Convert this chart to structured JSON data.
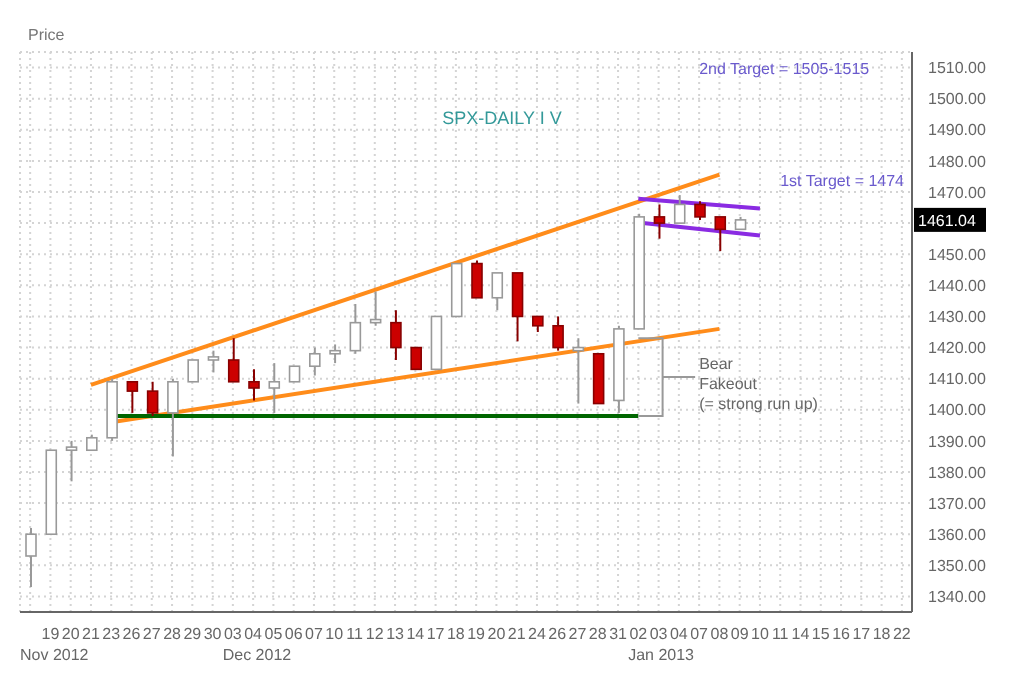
{
  "chart_data": {
    "type": "candlestick",
    "title": "SPX-DAILY I V",
    "ylabel": "Price",
    "categories": [
      null,
      "19",
      "20",
      "21",
      "23",
      "26",
      "27",
      "28",
      "29",
      "30",
      "03",
      "04",
      "05",
      "06",
      "07",
      "10",
      "11",
      "12",
      "13",
      "14",
      "17",
      "18",
      "19",
      "20",
      "21",
      "24",
      "26",
      "27",
      "28",
      "31",
      "02",
      "03",
      "04",
      "07",
      "08",
      "09",
      "10",
      "11",
      "14",
      "15",
      "16",
      "17",
      "18",
      "22"
    ],
    "ohlc": [
      [
        1353,
        1362,
        1343,
        1360
      ],
      [
        1360,
        1387,
        1360,
        1387
      ],
      [
        1387,
        1390,
        1377,
        1388
      ],
      [
        1387,
        1392,
        1387,
        1391
      ],
      [
        1391,
        1410,
        1390,
        1409
      ],
      [
        1409,
        1409,
        1399,
        1406
      ],
      [
        1406,
        1409,
        1398,
        1399
      ],
      [
        1399,
        1410,
        1385,
        1409
      ],
      [
        1409,
        1416,
        1409,
        1416
      ],
      [
        1416,
        1419,
        1412,
        1417
      ],
      [
        1416,
        1423,
        1409,
        1409
      ],
      [
        1409,
        1413,
        1403,
        1407
      ],
      [
        1407,
        1415,
        1399,
        1409
      ],
      [
        1409,
        1414,
        1409,
        1414
      ],
      [
        1414,
        1420,
        1411,
        1418
      ],
      [
        1418,
        1421,
        1415,
        1419
      ],
      [
        1419,
        1434,
        1418,
        1428
      ],
      [
        1428,
        1438,
        1427,
        1429
      ],
      [
        1428,
        1432,
        1416,
        1420
      ],
      [
        1420,
        1420,
        1413,
        1413
      ],
      [
        1413,
        1430,
        1413,
        1430
      ],
      [
        1430,
        1447,
        1430,
        1447
      ],
      [
        1447,
        1448,
        1436,
        1436
      ],
      [
        1436,
        1444,
        1432,
        1444
      ],
      [
        1444,
        1444,
        1422,
        1430
      ],
      [
        1430,
        1430,
        1425,
        1427
      ],
      [
        1427,
        1430,
        1419,
        1420
      ],
      [
        1419,
        1423,
        1402,
        1420
      ],
      [
        1418,
        1418,
        1402,
        1402
      ],
      [
        1403,
        1427,
        1399,
        1426
      ],
      [
        1426,
        1463,
        1426,
        1462
      ],
      [
        1462,
        1466,
        1455,
        1460
      ],
      [
        1460,
        1469,
        1460,
        1466
      ],
      [
        1466,
        1467,
        1461,
        1462
      ],
      [
        1462,
        1462,
        1451,
        1458
      ],
      [
        1458,
        1462,
        1458,
        1461.04
      ],
      null,
      null,
      null,
      null,
      null,
      null,
      null,
      null
    ],
    "series": [
      {
        "type": "line",
        "color": "#ff8c1a",
        "values": [
          null,
          null,
          null,
          1408,
          null,
          null,
          null,
          null,
          null,
          null,
          null,
          null,
          null,
          null,
          null,
          null,
          null,
          null,
          null,
          null,
          null,
          null,
          null,
          null,
          null,
          null,
          null,
          null,
          null,
          null,
          null,
          null,
          null,
          null,
          1475.6,
          null,
          null,
          null,
          null,
          null,
          null,
          null,
          null,
          null
        ]
      },
      {
        "type": "line",
        "color": "#ff8c1a",
        "values": [
          null,
          null,
          null,
          null,
          1396,
          null,
          null,
          null,
          null,
          null,
          null,
          null,
          null,
          null,
          null,
          null,
          null,
          null,
          null,
          null,
          null,
          null,
          null,
          null,
          null,
          null,
          null,
          null,
          null,
          null,
          null,
          null,
          null,
          null,
          1426,
          null,
          null,
          null,
          null,
          null,
          null,
          null,
          null,
          null
        ]
      },
      {
        "type": "line",
        "color": "#006600",
        "values": [
          null,
          null,
          null,
          null,
          1398,
          null,
          null,
          null,
          null,
          null,
          null,
          null,
          null,
          null,
          null,
          null,
          null,
          null,
          null,
          null,
          null,
          null,
          null,
          null,
          null,
          null,
          null,
          null,
          null,
          null,
          1398,
          null,
          null,
          null,
          null,
          null,
          null,
          null,
          null,
          null,
          null,
          null,
          null,
          null
        ]
      },
      {
        "type": "line",
        "color": "#8a2be2",
        "values": [
          null,
          null,
          null,
          null,
          null,
          null,
          null,
          null,
          null,
          null,
          null,
          null,
          null,
          null,
          null,
          null,
          null,
          null,
          null,
          null,
          null,
          null,
          null,
          null,
          null,
          null,
          null,
          null,
          null,
          null,
          1467.8,
          null,
          null,
          null,
          null,
          null,
          1464.7,
          null,
          null,
          null,
          null,
          null,
          null,
          null
        ]
      },
      {
        "type": "line",
        "color": "#8a2be2",
        "values": [
          null,
          null,
          null,
          null,
          null,
          null,
          null,
          null,
          null,
          null,
          null,
          null,
          null,
          null,
          null,
          null,
          null,
          null,
          null,
          null,
          null,
          null,
          null,
          null,
          null,
          null,
          null,
          null,
          null,
          null,
          1460.2,
          null,
          null,
          null,
          null,
          null,
          1456,
          null,
          null,
          null,
          null,
          null,
          null,
          null
        ]
      }
    ],
    "ylim": [
      1335,
      1515
    ],
    "yticks": [
      {
        "value": 1340,
        "label": "1340.00"
      },
      {
        "value": 1350,
        "label": "1350.00"
      },
      {
        "value": 1360,
        "label": "1360.00"
      },
      {
        "value": 1370,
        "label": "1370.00"
      },
      {
        "value": 1380,
        "label": "1380.00"
      },
      {
        "value": 1390,
        "label": "1390.00"
      },
      {
        "value": 1400,
        "label": "1400.00"
      },
      {
        "value": 1410,
        "label": "1410.00"
      },
      {
        "value": 1420,
        "label": "1420.00"
      },
      {
        "value": 1430,
        "label": "1430.00"
      },
      {
        "value": 1440,
        "label": "1440.00"
      },
      {
        "value": 1450,
        "label": "1450.00"
      },
      {
        "value": 1460,
        "label": null
      },
      {
        "value": 1470,
        "label": "1470.00"
      },
      {
        "value": 1480,
        "label": "1480.00"
      },
      {
        "value": 1490,
        "label": "1490.00"
      },
      {
        "value": 1500,
        "label": "1500.00"
      },
      {
        "value": 1510,
        "label": "1510.00"
      }
    ],
    "grid": true,
    "annotations": [
      "Nov 2012",
      "Dec 2012",
      "Jan 2013",
      "2nd Target = 1505-1515",
      "1st Target = 1474",
      "Bear\nFakeout\n(= strong run up)",
      {
        "text": "1461.04",
        "y": 1461.04
      }
    ]
  }
}
